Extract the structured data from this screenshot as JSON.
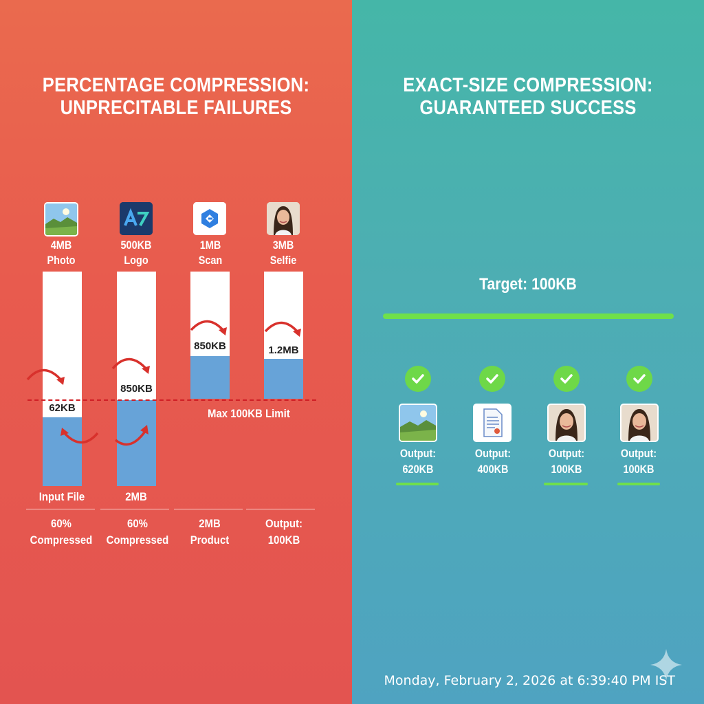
{
  "left": {
    "title_line1": "PERCENTAGE COMPRESSION:",
    "title_line2": "UNPRECITABLE FAILURES",
    "columns": [
      {
        "size": "4MB",
        "type": "Photo",
        "icon": "landscape-photo-icon",
        "bar_value": "62KB"
      },
      {
        "size": "500KB",
        "type": "Logo",
        "icon": "logo-icon",
        "bar_value": "850KB"
      },
      {
        "size": "1MB",
        "type": "Scan",
        "icon": "scan-app-icon",
        "bar_value": "850KB"
      },
      {
        "size": "3MB",
        "type": "Selfie",
        "icon": "selfie-portrait-icon",
        "bar_value": "1.2MB"
      }
    ],
    "limit_label": "Max 100KB Limit",
    "bar_bottom_labels": [
      "Input File",
      "2MB"
    ],
    "summaries": [
      {
        "line1": "60%",
        "line2": "Compressed"
      },
      {
        "line1": "60%",
        "line2": "Compressed"
      },
      {
        "line1": "2MB",
        "line2": "Product"
      },
      {
        "line1": "Output:",
        "line2": "100KB"
      }
    ]
  },
  "right": {
    "title_line1": "EXACT-SIZE COMPRESSION:",
    "title_line2": "GUARANTEED SUCCESS",
    "target_label": "Target: 100KB",
    "outputs": [
      {
        "line1": "Output:",
        "line2": "620KB",
        "icon": "landscape-photo-icon"
      },
      {
        "line1": "Output:",
        "line2": "400KB",
        "icon": "document-icon"
      },
      {
        "line1": "Output:",
        "line2": "100KB",
        "icon": "selfie-portrait-icon"
      },
      {
        "line1": "Output:",
        "line2": "100KB",
        "icon": "selfie-portrait-icon"
      }
    ]
  },
  "timestamp": "Monday, February 2, 2026 at 6:39:40 PM IST",
  "colors": {
    "left_bg": "#e85b4e",
    "right_bg": "#4daeb3",
    "bar_fill": "#67a3d8",
    "limit_line": "#cf1f25",
    "success_green": "#6fe04a"
  }
}
